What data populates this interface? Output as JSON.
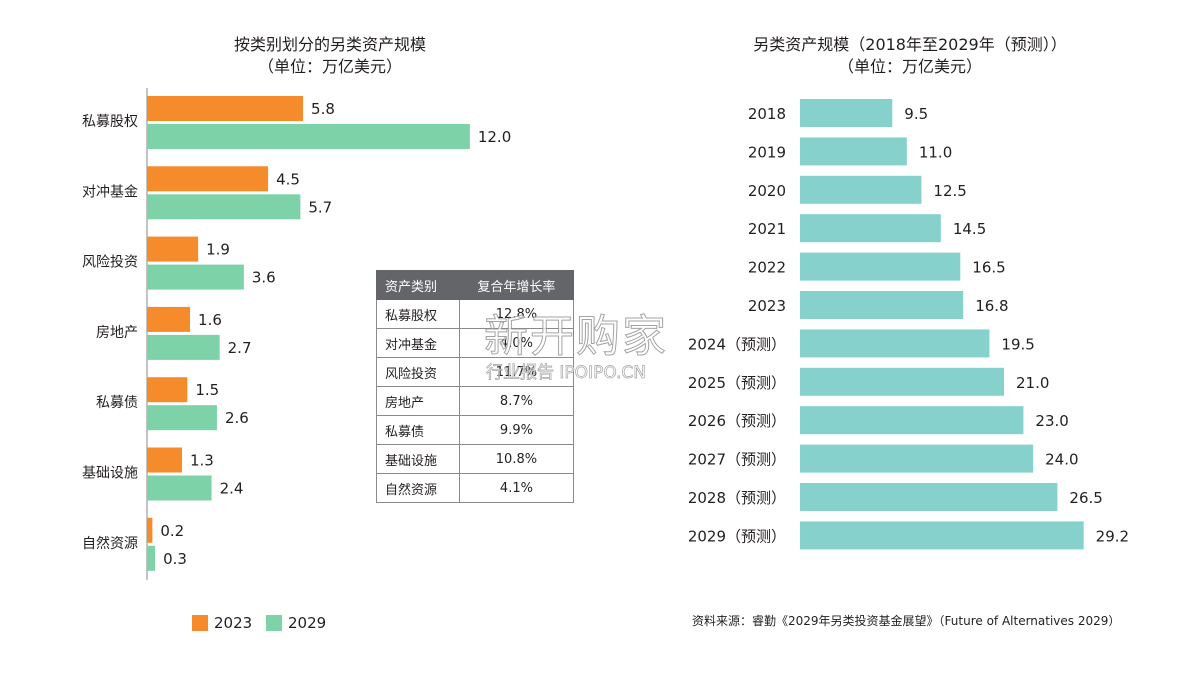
{
  "colors": {
    "orange": "#f58b2a",
    "green": "#7ed2a8",
    "teal": "#86d1cc",
    "axis": "#8a8a8a",
    "table_header": "#646569"
  },
  "chart_data": [
    {
      "type": "bar",
      "orientation": "horizontal",
      "title": "按类别划分的另类资产规模",
      "subtitle": "（单位：万亿美元）",
      "categories": [
        "私募股权",
        "对冲基金",
        "风险投资",
        "房地产",
        "私募债",
        "基础设施",
        "自然资源"
      ],
      "series": [
        {
          "name": "2023",
          "values": [
            5.8,
            4.5,
            1.9,
            1.6,
            1.5,
            1.3,
            0.2
          ],
          "labels": [
            "5.8",
            "4.5",
            "1.9",
            "1.6",
            "1.5",
            "1.3",
            "0.2"
          ]
        },
        {
          "name": "2029",
          "values": [
            12.0,
            5.7,
            3.6,
            2.7,
            2.6,
            2.4,
            0.3
          ],
          "labels": [
            "12.0",
            "5.7",
            "3.6",
            "2.7",
            "2.6",
            "2.4",
            "0.3"
          ]
        }
      ],
      "xlim": [
        0,
        12.6
      ],
      "legend": "bottom-left",
      "grid": false
    },
    {
      "type": "bar",
      "orientation": "horizontal",
      "title": "另类资产规模（2018年至2029年（预测））",
      "subtitle": "（单位：万亿美元）",
      "categories": [
        "2018",
        "2019",
        "2020",
        "2021",
        "2022",
        "2023",
        "2024（预测）",
        "2025（预测）",
        "2026（预测）",
        "2027（预测）",
        "2028（预测）",
        "2029（预测）"
      ],
      "values": [
        9.5,
        11.0,
        12.5,
        14.5,
        16.5,
        16.8,
        19.5,
        21.0,
        23.0,
        24.0,
        26.5,
        29.2
      ],
      "labels": [
        "9.5",
        "11.0",
        "12.5",
        "14.5",
        "16.5",
        "16.8",
        "19.5",
        "21.0",
        "23.0",
        "24.0",
        "26.5",
        "29.2"
      ],
      "xlim": [
        0,
        31.5
      ],
      "grid": false
    }
  ],
  "table": {
    "headers": [
      "资产类别",
      "复合年增长率"
    ],
    "rows": [
      [
        "私募股权",
        "12.8%"
      ],
      [
        "对冲基金",
        "4.0%"
      ],
      [
        "风险投资",
        "11.7%"
      ],
      [
        "房地产",
        "8.7%"
      ],
      [
        "私募债",
        "9.9%"
      ],
      [
        "基础设施",
        "10.8%"
      ],
      [
        "自然资源",
        "4.1%"
      ]
    ]
  },
  "source": "资料来源：睿勤《2029年另类投资基金展望》（Future of Alternatives 2029）",
  "watermark": {
    "main": "新开购家",
    "sub": "行业报告 IPOIPO.CN"
  }
}
